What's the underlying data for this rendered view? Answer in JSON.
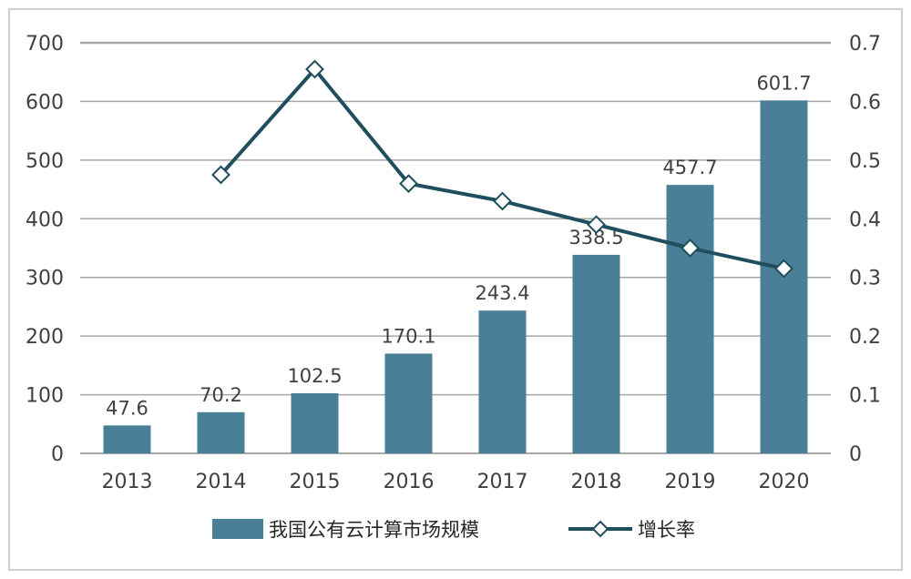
{
  "chart_data": {
    "type": "bar",
    "categories": [
      "2013",
      "2014",
      "2015",
      "2016",
      "2017",
      "2018",
      "2019",
      "2020"
    ],
    "series": [
      {
        "name": "我国公有云计算市场规模",
        "type": "bar",
        "axis": "left",
        "values": [
          47.6,
          70.2,
          102.5,
          170.1,
          243.4,
          338.5,
          457.7,
          601.7
        ],
        "data_labels": [
          "47.6",
          "70.2",
          "102.5",
          "170.1",
          "243.4",
          "338.5",
          "457.7",
          "601.7"
        ],
        "color": "#4a7f98"
      },
      {
        "name": "增长率",
        "type": "line",
        "axis": "right",
        "values": [
          null,
          0.475,
          0.655,
          0.46,
          0.43,
          0.39,
          0.35,
          0.315
        ],
        "color": "#1f4e5c",
        "marker": "diamond-open"
      }
    ],
    "ylim_left": [
      0,
      700
    ],
    "ylim_right": [
      0,
      0.7
    ],
    "yticks_left": [
      "0",
      "100",
      "200",
      "300",
      "400",
      "500",
      "600",
      "700"
    ],
    "yticks_right": [
      "0",
      "0.1",
      "0.2",
      "0.3",
      "0.4",
      "0.5",
      "0.6",
      "0.7"
    ],
    "grid": true,
    "legend_position": "bottom"
  },
  "colors": {
    "bar": "#4a7f98",
    "line": "#1f4e5c",
    "grid": "#a6a6a6",
    "frame": "#bfbfbf"
  }
}
